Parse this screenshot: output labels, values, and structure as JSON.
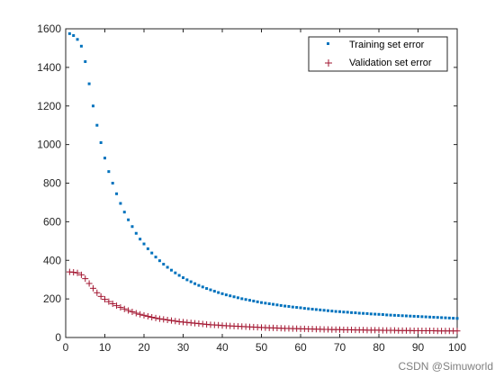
{
  "chart_data": {
    "type": "scatter",
    "x": [
      1,
      2,
      3,
      4,
      5,
      6,
      7,
      8,
      9,
      10,
      11,
      12,
      13,
      14,
      15,
      16,
      17,
      18,
      19,
      20,
      21,
      22,
      23,
      24,
      25,
      26,
      27,
      28,
      29,
      30,
      31,
      32,
      33,
      34,
      35,
      36,
      37,
      38,
      39,
      40,
      41,
      42,
      43,
      44,
      45,
      46,
      47,
      48,
      49,
      50,
      51,
      52,
      53,
      54,
      55,
      56,
      57,
      58,
      59,
      60,
      61,
      62,
      63,
      64,
      65,
      66,
      67,
      68,
      69,
      70,
      71,
      72,
      73,
      74,
      75,
      76,
      77,
      78,
      79,
      80,
      81,
      82,
      83,
      84,
      85,
      86,
      87,
      88,
      89,
      90,
      91,
      92,
      93,
      94,
      95,
      96,
      97,
      98,
      99,
      100
    ],
    "series": [
      {
        "name": "Training set error",
        "marker": "square",
        "color": "#0072BD",
        "values": [
          1575,
          1565,
          1545,
          1510,
          1430,
          1315,
          1200,
          1100,
          1010,
          930,
          860,
          800,
          745,
          695,
          650,
          610,
          575,
          540,
          510,
          485,
          460,
          438,
          417,
          398,
          380,
          364,
          349,
          335,
          322,
          310,
          299,
          289,
          279,
          270,
          262,
          254,
          247,
          240,
          233,
          227,
          221,
          216,
          211,
          206,
          201,
          197,
          193,
          189,
          185,
          181,
          178,
          175,
          172,
          169,
          166,
          163,
          161,
          158,
          156,
          154,
          151,
          149,
          147,
          145,
          143,
          141,
          139,
          137,
          135,
          134,
          132,
          131,
          129,
          128,
          126,
          125,
          124,
          122,
          121,
          120,
          119,
          117,
          116,
          115,
          114,
          113,
          112,
          111,
          110,
          109,
          108,
          107,
          106,
          105,
          104,
          103,
          102,
          101,
          100,
          99
        ]
      },
      {
        "name": "Validation set error",
        "marker": "plus",
        "color": "#A2142F",
        "values": [
          340,
          338,
          335,
          325,
          305,
          280,
          255,
          232,
          213,
          198,
          186,
          175,
          165,
          156,
          148,
          140,
          133,
          126,
          120,
          115,
          110,
          105,
          101,
          97,
          94,
          91,
          88,
          85,
          82,
          80,
          78,
          76,
          74,
          72,
          70,
          68,
          66,
          65,
          64,
          62,
          61,
          60,
          59,
          58,
          57,
          56,
          55,
          54,
          53,
          52,
          51,
          50,
          50,
          49,
          48,
          47,
          47,
          46,
          46,
          45,
          45,
          44,
          44,
          43,
          43,
          42,
          42,
          41,
          41,
          41,
          40,
          40,
          40,
          39,
          39,
          39,
          38,
          38,
          38,
          38,
          37,
          37,
          37,
          37,
          36,
          36,
          36,
          36,
          35,
          35,
          35,
          35,
          35,
          35,
          34,
          34,
          34,
          34,
          34,
          34
        ]
      }
    ],
    "xlim": [
      0,
      100
    ],
    "ylim": [
      0,
      1600
    ],
    "xticks": [
      "0",
      "10",
      "20",
      "30",
      "40",
      "50",
      "60",
      "70",
      "80",
      "90",
      "100"
    ],
    "yticks": [
      "0",
      "200",
      "400",
      "600",
      "800",
      "1000",
      "1200",
      "1400",
      "1600"
    ],
    "legend_position": "top-right",
    "grid": false
  },
  "watermark": "CSDN @Simuworld"
}
